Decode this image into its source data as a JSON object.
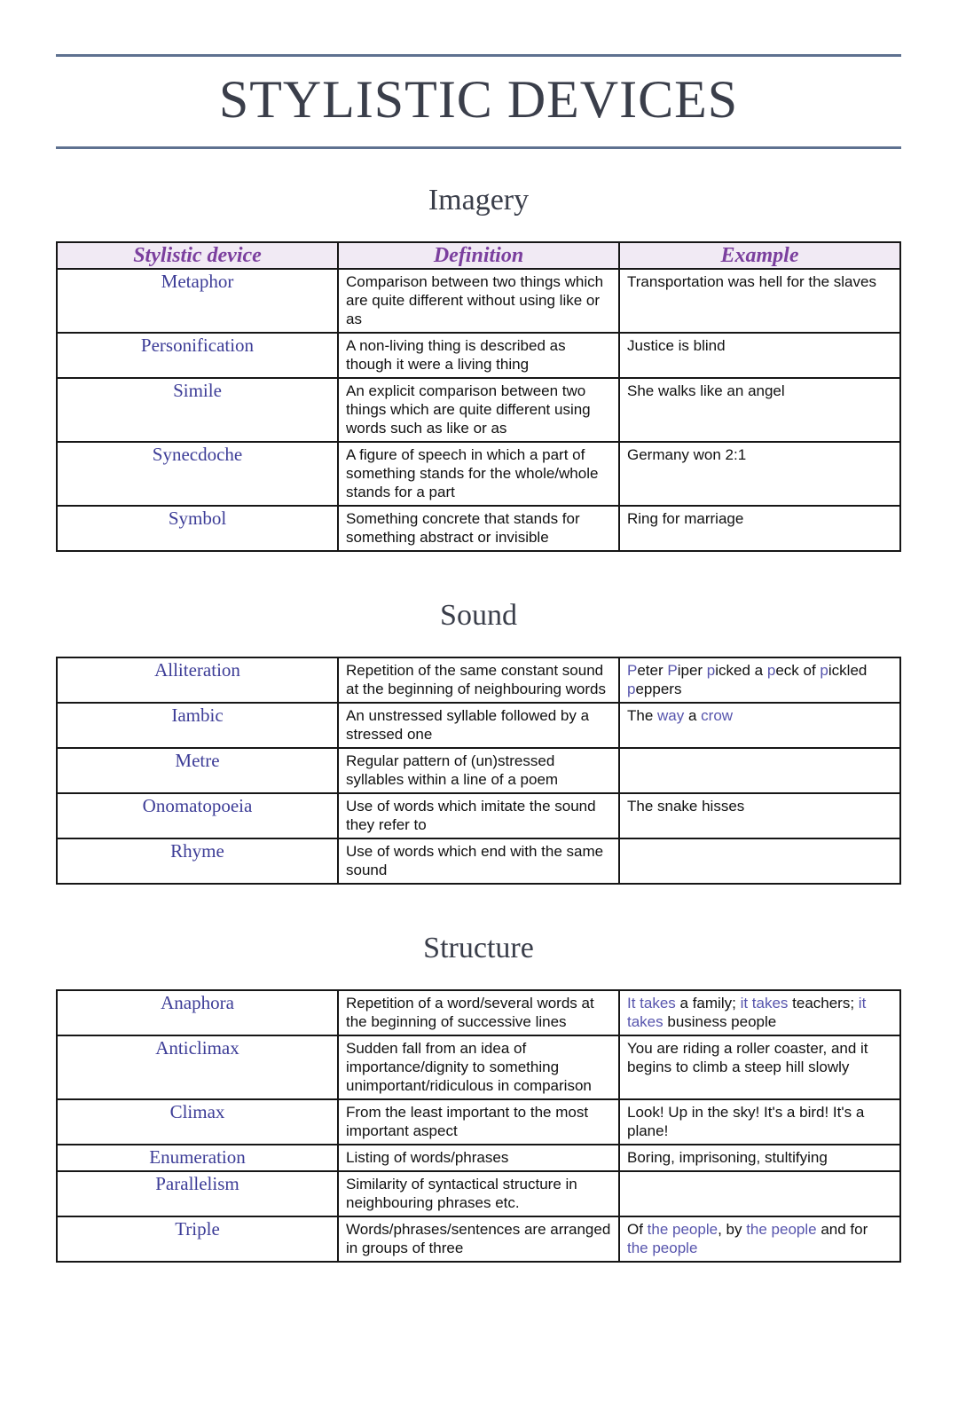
{
  "page": {
    "title": "STYLISTIC DEVICES"
  },
  "colors": {
    "rule": "#5e7190",
    "title_text": "#3a3e4a",
    "header_bg": "#f1eaf4",
    "header_text": "#7b3f9e",
    "device_name_text": "#3d3d97",
    "example_highlight": "#5755ad",
    "body_text": "#111111",
    "table_border": "#161616"
  },
  "table_headers": [
    "Stylistic device",
    "Definition",
    "Example"
  ],
  "sections": [
    {
      "id": "imagery",
      "heading": "Imagery",
      "show_header": true,
      "rows": [
        {
          "device": "Metaphor",
          "definition": "Comparison between two things which are quite different without using like or as",
          "example": [
            {
              "t": "Transportation was hell for the slaves",
              "h": false
            }
          ]
        },
        {
          "device": "Personification",
          "definition": "A non-living thing is described as though it were a living thing",
          "example": [
            {
              "t": "Justice is blind",
              "h": false
            }
          ]
        },
        {
          "device": "Simile",
          "definition": "An explicit comparison between two things which are quite different using words such as like or as",
          "example": [
            {
              "t": "She walks like an angel",
              "h": false
            }
          ]
        },
        {
          "device": "Synecdoche",
          "definition": "A figure of speech in which a part of something stands for the whole/whole stands for a part",
          "example": [
            {
              "t": "Germany won 2:1",
              "h": false
            }
          ]
        },
        {
          "device": "Symbol",
          "definition": "Something concrete that stands for something abstract or invisible",
          "example": [
            {
              "t": "Ring for marriage",
              "h": false
            }
          ]
        }
      ]
    },
    {
      "id": "sound",
      "heading": "Sound",
      "show_header": false,
      "rows": [
        {
          "device": "Alliteration",
          "definition": "Repetition of the same constant sound at the beginning of neighbouring words",
          "example": [
            {
              "t": "P",
              "h": true
            },
            {
              "t": "eter ",
              "h": false
            },
            {
              "t": "P",
              "h": true
            },
            {
              "t": "iper ",
              "h": false
            },
            {
              "t": "p",
              "h": true
            },
            {
              "t": "icked a ",
              "h": false
            },
            {
              "t": "p",
              "h": true
            },
            {
              "t": "eck of ",
              "h": false
            },
            {
              "t": "p",
              "h": true
            },
            {
              "t": "ickled ",
              "h": false
            },
            {
              "t": "p",
              "h": true
            },
            {
              "t": "eppers",
              "h": false
            }
          ]
        },
        {
          "device": "Iambic",
          "definition": "An unstressed syllable followed by a stressed one",
          "example": [
            {
              "t": "The ",
              "h": false
            },
            {
              "t": "way",
              "h": true
            },
            {
              "t": " a ",
              "h": false
            },
            {
              "t": "crow",
              "h": true
            }
          ]
        },
        {
          "device": "Metre",
          "definition": "Regular pattern of (un)stressed syllables within a line of a poem",
          "example": []
        },
        {
          "device": "Onomatopoeia",
          "definition": "Use of words which imitate the sound they refer to",
          "example": [
            {
              "t": "The snake hisses",
              "h": false
            }
          ]
        },
        {
          "device": "Rhyme",
          "definition": "Use of words which end with the same sound",
          "example": []
        }
      ]
    },
    {
      "id": "structure",
      "heading": "Structure",
      "show_header": false,
      "rows": [
        {
          "device": "Anaphora",
          "definition": "Repetition of a word/several words at the beginning of successive lines",
          "example": [
            {
              "t": "It takes",
              "h": true
            },
            {
              "t": " a family; ",
              "h": false
            },
            {
              "t": "it takes",
              "h": true
            },
            {
              "t": " teachers; ",
              "h": false
            },
            {
              "t": "it takes",
              "h": true
            },
            {
              "t": " business people",
              "h": false
            }
          ]
        },
        {
          "device": "Anticlimax",
          "definition": "Sudden fall from an idea of importance/dignity to something unimportant/ridiculous in comparison",
          "example": [
            {
              "t": "You are riding a roller coaster, and it begins to climb a steep hill slowly",
              "h": false
            }
          ]
        },
        {
          "device": "Climax",
          "definition": "From the least important to the most important aspect",
          "example": [
            {
              "t": "Look! Up in the sky! It's a bird! It's a plane!",
              "h": false
            }
          ]
        },
        {
          "device": "Enumeration",
          "definition": "Listing of words/phrases",
          "example": [
            {
              "t": "Boring, imprisoning, stultifying",
              "h": false
            }
          ]
        },
        {
          "device": "Parallelism",
          "definition": "Similarity of syntactical structure in neighbouring phrases etc.",
          "example": []
        },
        {
          "device": "Triple",
          "definition": "Words/phrases/sentences are arranged in groups of three",
          "example": [
            {
              "t": "Of ",
              "h": false
            },
            {
              "t": "the people",
              "h": true
            },
            {
              "t": ", by ",
              "h": false
            },
            {
              "t": "the people",
              "h": true
            },
            {
              "t": " and for ",
              "h": false
            },
            {
              "t": "the people",
              "h": true
            }
          ]
        }
      ]
    }
  ]
}
